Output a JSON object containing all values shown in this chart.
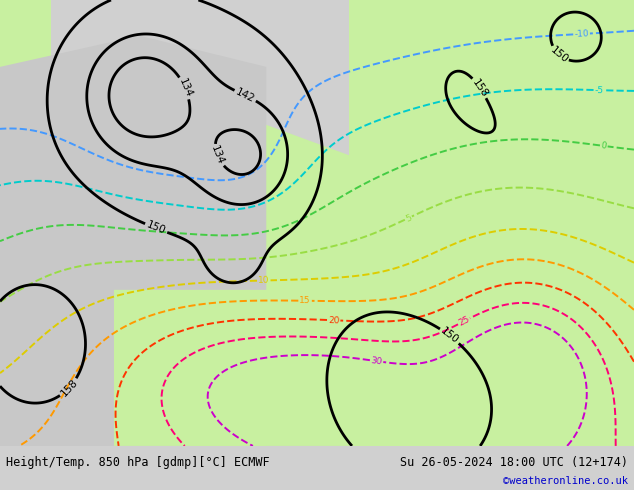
{
  "title_left": "Height/Temp. 850 hPa [gdmp][°C] ECMWF",
  "title_right": "Su 26-05-2024 18:00 UTC (12+174)",
  "credit": "©weatheronline.co.uk",
  "bottom_bar_color": "#d0d0d0",
  "credit_color": "#0000cc",
  "title_fontsize": 8.5,
  "credit_fontsize": 7.5,
  "temp_colors": {
    "-10": "#4499ff",
    "-5": "#00cccc",
    "0": "#44cc44",
    "5": "#99dd44",
    "10": "#ddcc00",
    "15": "#ff9900",
    "20": "#ff3300",
    "25": "#ff0077",
    "30": "#cc00cc"
  },
  "geo_levels": [
    134,
    142,
    150,
    158
  ],
  "temp_levels": [
    -10,
    -5,
    0,
    5,
    10,
    15,
    20,
    25,
    30
  ]
}
